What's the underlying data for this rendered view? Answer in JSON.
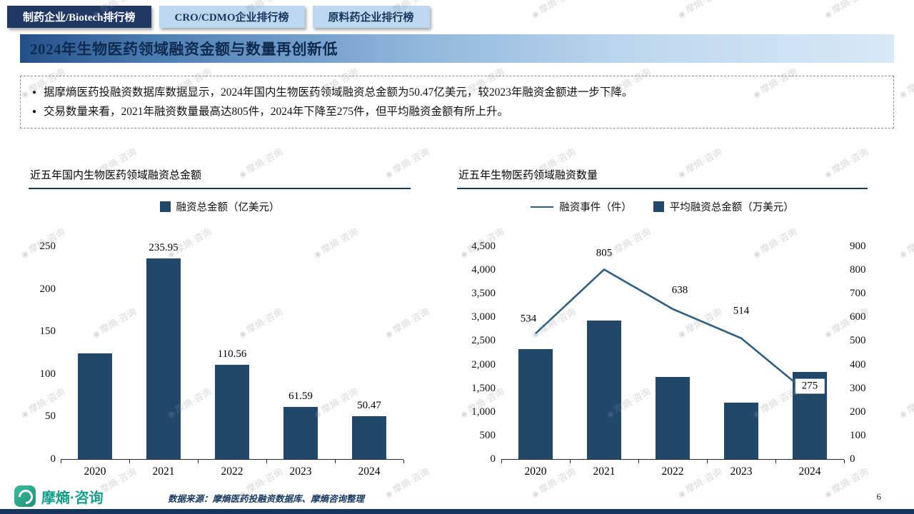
{
  "tabs": [
    {
      "label": "制药企业/Biotech排行榜",
      "active": true
    },
    {
      "label": "CRO/CDMO企业排行榜",
      "active": false
    },
    {
      "label": "原料药企业排行榜",
      "active": false
    }
  ],
  "title": "2024年生物医药领域融资金额与数量再创新低",
  "bullets": [
    "据摩熵医药投融资数据库数据显示，2024年国内生物医药领域融资总金额为50.47亿美元，较2023年融资金额进一步下降。",
    "交易数量来看，2021年融资数量最高达805件，2024年下降至275件，但平均融资金额有所上升。"
  ],
  "watermark": "摩熵·咨询",
  "footer": {
    "logo_text": "摩熵·咨询",
    "source": "数据来源：摩熵医药投融资数据库、摩熵咨询整理",
    "page": "6"
  },
  "colors": {
    "navy": "#17375E",
    "tab_active_bg": "#1F3864",
    "tab_light_bg": "#BDD7EE",
    "bar": "#21486B",
    "line": "#2F5F80",
    "logo_green": "#13A089"
  },
  "chart_data": [
    {
      "type": "bar",
      "title": "近五年国内生物医药领域融资总金额",
      "legend": "融资总金额（亿美元）",
      "categories": [
        "2020",
        "2021",
        "2022",
        "2023",
        "2024"
      ],
      "values": [
        124.5,
        235.95,
        110.56,
        61.59,
        50.47
      ],
      "labels": [
        "",
        "235.95",
        "110.56",
        "61.59",
        "50.47"
      ],
      "ylabel": "亿美元",
      "ylim": [
        0,
        250
      ],
      "ytick_values": [
        0,
        50,
        100,
        150,
        200,
        250
      ],
      "ytick_labels": [
        "0",
        "50",
        "100",
        "150",
        "200",
        "250"
      ],
      "grid": false,
      "legend_position": "top-center"
    },
    {
      "type": "bar",
      "title": "近五年生物医药领域融资数量",
      "legend_line": "融资事件（件）",
      "legend_bar": "平均融资总金额（万美元）",
      "categories": [
        "2020",
        "2021",
        "2022",
        "2023",
        "2024"
      ],
      "series": [
        {
          "name": "平均融资总金额（万美元）",
          "type": "bar",
          "axis": "left",
          "values": [
            2331,
            2931,
            1733,
            1198,
            1835
          ]
        },
        {
          "name": "融资事件（件）",
          "type": "line",
          "axis": "right",
          "values": [
            534,
            805,
            638,
            514,
            275
          ]
        }
      ],
      "line_labels": [
        "534",
        "805",
        "638",
        "514",
        "275"
      ],
      "left_ylim": [
        0,
        4500
      ],
      "left_ytick_values": [
        0,
        500,
        1000,
        1500,
        2000,
        2500,
        3000,
        3500,
        4000,
        4500
      ],
      "left_ytick_labels": [
        "0",
        "500",
        "1,000",
        "1,500",
        "2,000",
        "2,500",
        "3,000",
        "3,500",
        "4,000",
        "4,500"
      ],
      "right_ylim": [
        0,
        900
      ],
      "right_ytick_values": [
        0,
        100,
        200,
        300,
        400,
        500,
        600,
        700,
        800,
        900
      ],
      "right_ytick_labels": [
        "0",
        "100",
        "200",
        "300",
        "400",
        "500",
        "600",
        "700",
        "800",
        "900"
      ],
      "grid": false,
      "legend_position": "top-center"
    }
  ]
}
